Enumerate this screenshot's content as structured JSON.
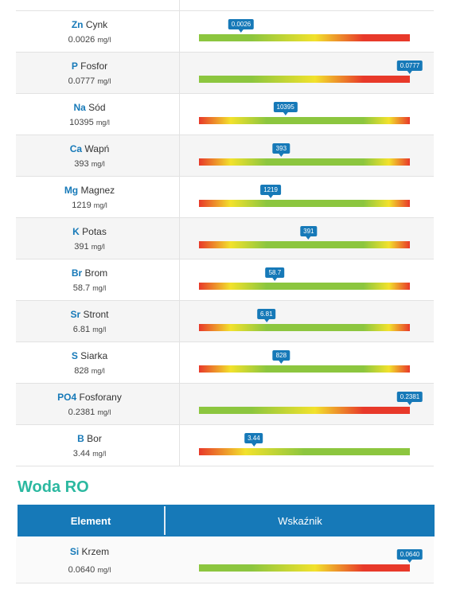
{
  "elements": [
    {
      "symbol": "Zn",
      "name": "Cynk",
      "value": "0.0026",
      "unit": "mg/l",
      "marker_pct": 20,
      "gradient": "g-y-r"
    },
    {
      "symbol": "P",
      "name": "Fosfor",
      "value": "0.0777",
      "unit": "mg/l",
      "marker_pct": 100,
      "gradient": "g-y-r"
    },
    {
      "symbol": "Na",
      "name": "Sód",
      "value": "10395",
      "unit": "mg/l",
      "marker_pct": 41,
      "gradient": "r-y-g-y-r"
    },
    {
      "symbol": "Ca",
      "name": "Wapń",
      "value": "393",
      "unit": "mg/l",
      "marker_pct": 39,
      "gradient": "r-y-g-y-r"
    },
    {
      "symbol": "Mg",
      "name": "Magnez",
      "value": "1219",
      "unit": "mg/l",
      "marker_pct": 34,
      "gradient": "r-y-g-y-r"
    },
    {
      "symbol": "K",
      "name": "Potas",
      "value": "391",
      "unit": "mg/l",
      "marker_pct": 52,
      "gradient": "r-y-g-y-r"
    },
    {
      "symbol": "Br",
      "name": "Brom",
      "value": "58.7",
      "unit": "mg/l",
      "marker_pct": 36,
      "gradient": "r-y-g-y-r"
    },
    {
      "symbol": "Sr",
      "name": "Stront",
      "value": "6.81",
      "unit": "mg/l",
      "marker_pct": 32,
      "gradient": "r-y-g-y-r"
    },
    {
      "symbol": "S",
      "name": "Siarka",
      "value": "828",
      "unit": "mg/l",
      "marker_pct": 39,
      "gradient": "r-y-g-y-r"
    },
    {
      "symbol": "PO4",
      "name": "Fosforany",
      "value": "0.2381",
      "unit": "mg/l",
      "marker_pct": 100,
      "gradient": "g-y-r"
    },
    {
      "symbol": "B",
      "name": "Bor",
      "value": "3.44",
      "unit": "mg/l",
      "marker_pct": 26,
      "gradient": "r-y-g"
    }
  ],
  "ro_section": {
    "title": "Woda RO",
    "col_element": "Element",
    "col_indicator": "Wskaźnik",
    "elements": [
      {
        "symbol": "Si",
        "name": "Krzem",
        "value": "0.0640",
        "unit": "mg/l",
        "marker_pct": 100,
        "gradient": "g-y-r"
      }
    ]
  },
  "colors": {
    "accent_blue": "#1679b8",
    "teal": "#2bb8a0",
    "green": "#8cc63f",
    "yellow": "#f2e22c",
    "red": "#e8392a"
  }
}
